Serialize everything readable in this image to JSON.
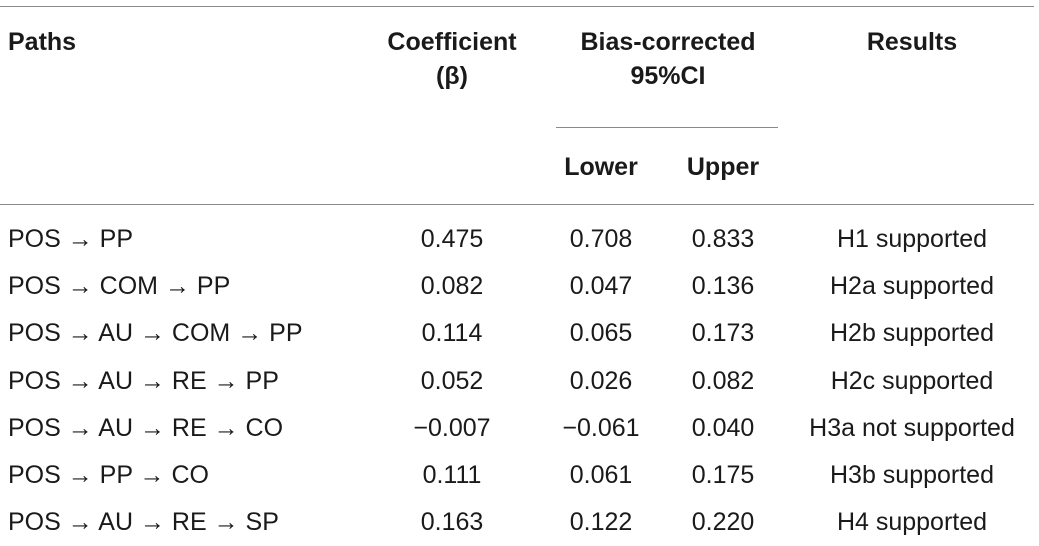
{
  "headers": {
    "paths": "Paths",
    "coefficient_line1": "Coefficient",
    "coefficient_line2": "(β)",
    "bias_line1": "Bias-corrected",
    "bias_line2": "95%CI",
    "lower": "Lower",
    "upper": "Upper",
    "results": "Results"
  },
  "rows": [
    {
      "path": "POS → PP",
      "coef": "0.475",
      "lower": "0.708",
      "upper": "0.833",
      "result": "H1 supported"
    },
    {
      "path": "POS → COM → PP",
      "coef": "0.082",
      "lower": "0.047",
      "upper": "0.136",
      "result": "H2a supported"
    },
    {
      "path": "POS → AU → COM → PP",
      "coef": "0.114",
      "lower": "0.065",
      "upper": "0.173",
      "result": "H2b supported"
    },
    {
      "path": "POS → AU → RE → PP",
      "coef": "0.052",
      "lower": "0.026",
      "upper": "0.082",
      "result": "H2c supported"
    },
    {
      "path": "POS → AU → RE → CO",
      "coef": "−0.007",
      "lower": "−0.061",
      "upper": "0.040",
      "result": "H3a not supported"
    },
    {
      "path": "POS → PP → CO",
      "coef": "0.111",
      "lower": "0.061",
      "upper": "0.175",
      "result": "H3b supported"
    },
    {
      "path": "POS → AU → RE → SP",
      "coef": "0.163",
      "lower": "0.122",
      "upper": "0.220",
      "result": "H4 supported"
    }
  ]
}
